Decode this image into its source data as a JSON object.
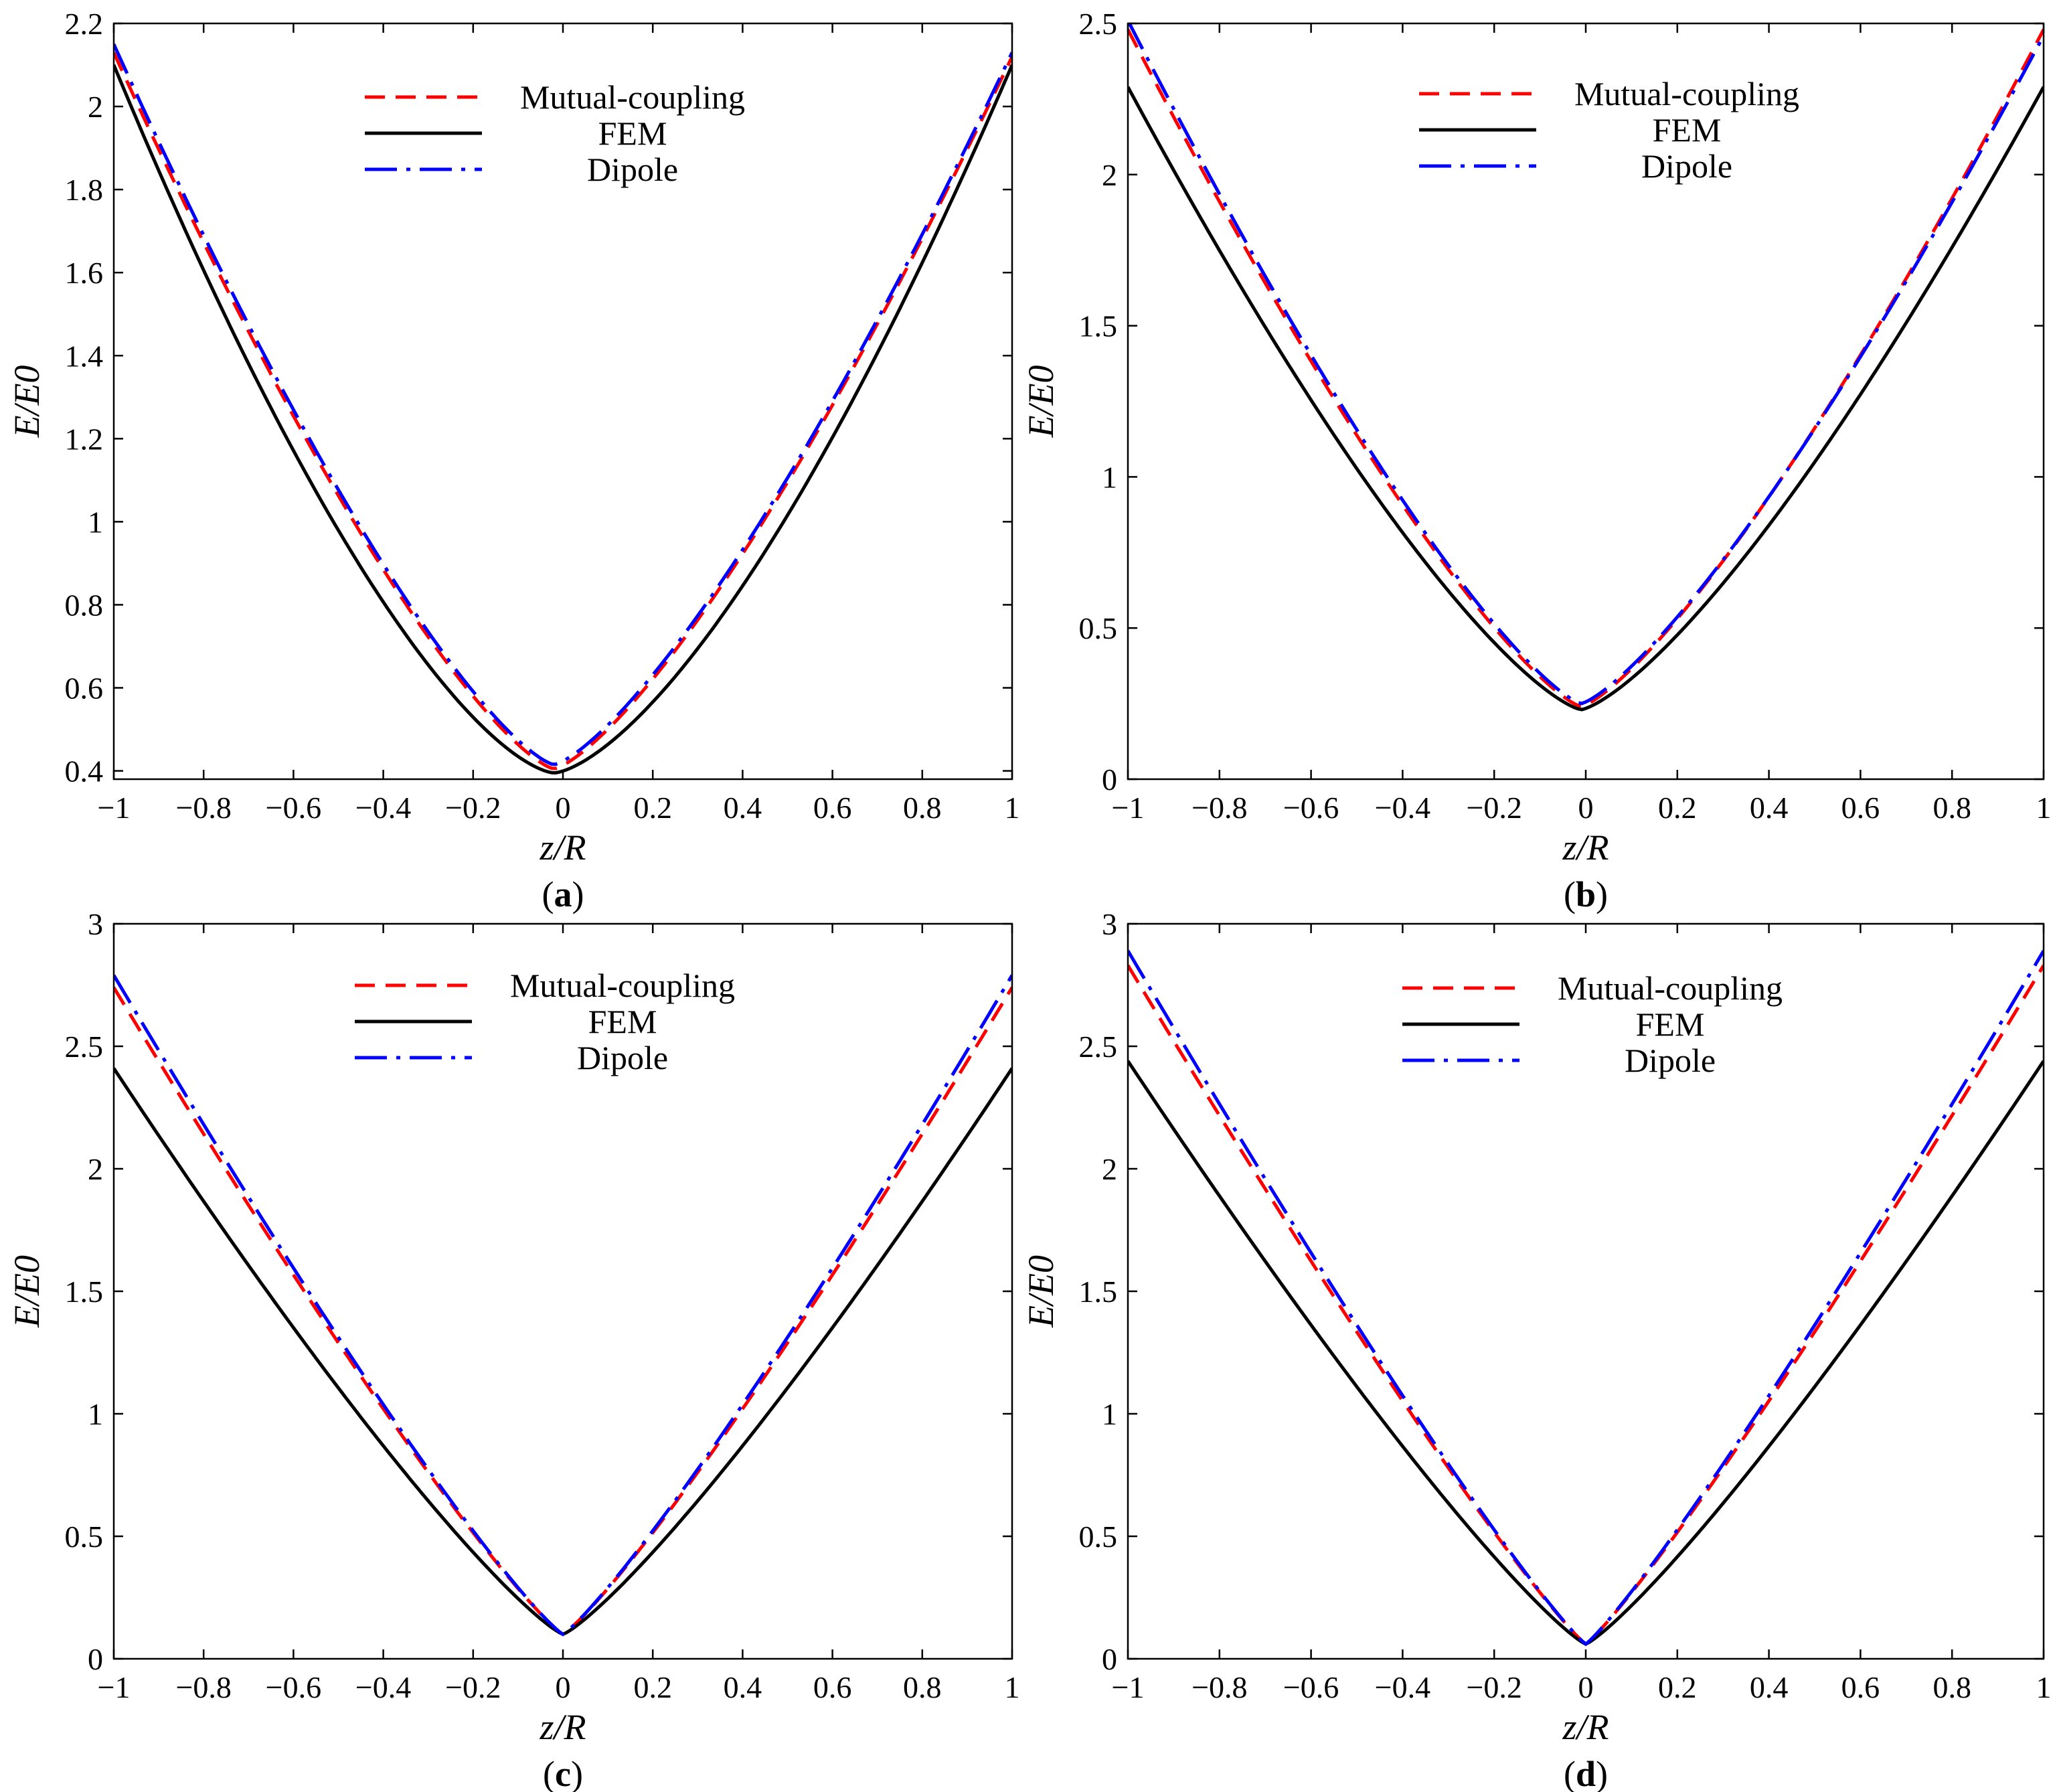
{
  "series_styles": {
    "mutual": {
      "color": "#ff0000",
      "dash": "30 16"
    },
    "fem": {
      "color": "#000000",
      "dash": ""
    },
    "dipole": {
      "color": "#0000ff",
      "dash": "48 14 6 14"
    }
  },
  "chart_data": [
    {
      "panel": "a",
      "type": "line",
      "label_open": "(",
      "label_letter": "a",
      "label_close": ")",
      "xlabel": "z/R",
      "ylabel": "E/E0",
      "xlim": [
        -1,
        1
      ],
      "ylim": [
        0.38,
        2.2
      ],
      "xticks": [
        -1,
        -0.8,
        -0.6,
        -0.4,
        -0.2,
        0,
        0.2,
        0.4,
        0.6,
        0.8,
        1
      ],
      "xtick_labels": [
        "−1",
        "−0.8",
        "−0.6",
        "−0.4",
        "−0.2",
        "0",
        "0.2",
        "0.4",
        "0.6",
        "0.8",
        "1"
      ],
      "yticks": [
        0.4,
        0.6,
        0.8,
        1,
        1.2,
        1.4,
        1.6,
        1.8,
        2,
        2.2
      ],
      "ytick_labels": [
        "0.4",
        "0.6",
        "0.8",
        "1",
        "1.2",
        "1.4",
        "1.6",
        "1.8",
        "2",
        "2.2"
      ],
      "legend": {
        "placement": "top-center",
        "entries": [
          "Mutual-coupling",
          "FEM",
          "Dipole"
        ]
      },
      "series": [
        {
          "name": "Mutual-coupling",
          "style": "mutual",
          "x_min": -0.02,
          "y_min": 0.405,
          "y_left": 2.13,
          "y_right": 2.12,
          "shape": 1.35
        },
        {
          "name": "FEM",
          "style": "fem",
          "x_min": -0.02,
          "y_min": 0.395,
          "y_left": 2.1,
          "y_right": 2.1,
          "shape": 1.5
        },
        {
          "name": "Dipole",
          "style": "dipole",
          "x_min": -0.02,
          "y_min": 0.415,
          "y_left": 2.15,
          "y_right": 2.13,
          "shape": 1.35
        }
      ]
    },
    {
      "panel": "b",
      "type": "line",
      "label_open": "(",
      "label_letter": "b",
      "label_close": ")",
      "xlabel": "z/R",
      "ylabel": "E/E0",
      "xlim": [
        -1,
        1
      ],
      "ylim": [
        0,
        2.5
      ],
      "xticks": [
        -1,
        -0.8,
        -0.6,
        -0.4,
        -0.2,
        0,
        0.2,
        0.4,
        0.6,
        0.8,
        1
      ],
      "xtick_labels": [
        "−1",
        "−0.8",
        "−0.6",
        "−0.4",
        "−0.2",
        "0",
        "0.2",
        "0.4",
        "0.6",
        "0.8",
        "1"
      ],
      "yticks": [
        0,
        0.5,
        1,
        1.5,
        2,
        2.5
      ],
      "ytick_labels": [
        "0",
        "0.5",
        "1",
        "1.5",
        "2",
        "2.5"
      ],
      "legend": {
        "placement": "top-center",
        "entries": [
          "Mutual-coupling",
          "FEM",
          "Dipole"
        ]
      },
      "series": [
        {
          "name": "Mutual-coupling",
          "style": "mutual",
          "x_min": -0.01,
          "y_min": 0.24,
          "y_left": 2.48,
          "y_right": 2.48,
          "shape": 1.3
        },
        {
          "name": "FEM",
          "style": "fem",
          "x_min": -0.01,
          "y_min": 0.23,
          "y_left": 2.29,
          "y_right": 2.29,
          "shape": 1.35
        },
        {
          "name": "Dipole",
          "style": "dipole",
          "x_min": -0.01,
          "y_min": 0.25,
          "y_left": 2.51,
          "y_right": 2.46,
          "shape": 1.3
        }
      ]
    },
    {
      "panel": "c",
      "type": "line",
      "label_open": "(",
      "label_letter": "c",
      "label_close": ")",
      "xlabel": "z/R",
      "ylabel": "E/E0",
      "xlim": [
        -1,
        1
      ],
      "ylim": [
        0,
        3
      ],
      "xticks": [
        -1,
        -0.8,
        -0.6,
        -0.4,
        -0.2,
        0,
        0.2,
        0.4,
        0.6,
        0.8,
        1
      ],
      "xtick_labels": [
        "−1",
        "−0.8",
        "−0.6",
        "−0.4",
        "−0.2",
        "0",
        "0.2",
        "0.4",
        "0.6",
        "0.8",
        "1"
      ],
      "yticks": [
        0,
        0.5,
        1,
        1.5,
        2,
        2.5,
        3
      ],
      "ytick_labels": [
        "0",
        "0.5",
        "1",
        "1.5",
        "2",
        "2.5",
        "3"
      ],
      "legend": {
        "placement": "top-center",
        "entries": [
          "Mutual-coupling",
          "FEM",
          "Dipole"
        ]
      },
      "series": [
        {
          "name": "Mutual-coupling",
          "style": "mutual",
          "x_min": 0.0,
          "y_min": 0.1,
          "y_left": 2.74,
          "y_right": 2.74,
          "shape": 1.15
        },
        {
          "name": "FEM",
          "style": "fem",
          "x_min": 0.0,
          "y_min": 0.1,
          "y_left": 2.41,
          "y_right": 2.41,
          "shape": 1.2
        },
        {
          "name": "Dipole",
          "style": "dipole",
          "x_min": 0.0,
          "y_min": 0.1,
          "y_left": 2.79,
          "y_right": 2.79,
          "shape": 1.15
        }
      ]
    },
    {
      "panel": "d",
      "type": "line",
      "label_open": "(",
      "label_letter": "d",
      "label_close": ")",
      "xlabel": "z/R",
      "ylabel": "E/E0",
      "xlim": [
        -1,
        1
      ],
      "ylim": [
        0,
        3
      ],
      "xticks": [
        -1,
        -0.8,
        -0.6,
        -0.4,
        -0.2,
        0,
        0.2,
        0.4,
        0.6,
        0.8,
        1
      ],
      "xtick_labels": [
        "−1",
        "−0.8",
        "−0.6",
        "−0.4",
        "−0.2",
        "0",
        "0.2",
        "0.4",
        "0.6",
        "0.8",
        "1"
      ],
      "yticks": [
        0,
        0.5,
        1,
        1.5,
        2,
        2.5,
        3
      ],
      "ytick_labels": [
        "0",
        "0.5",
        "1",
        "1.5",
        "2",
        "2.5",
        "3"
      ],
      "legend": {
        "placement": "top-center",
        "entries": [
          "Mutual-coupling",
          "FEM",
          "Dipole"
        ]
      },
      "series": [
        {
          "name": "Mutual-coupling",
          "style": "mutual",
          "x_min": 0.0,
          "y_min": 0.06,
          "y_left": 2.83,
          "y_right": 2.83,
          "shape": 1.12
        },
        {
          "name": "FEM",
          "style": "fem",
          "x_min": 0.0,
          "y_min": 0.06,
          "y_left": 2.44,
          "y_right": 2.44,
          "shape": 1.18
        },
        {
          "name": "Dipole",
          "style": "dipole",
          "x_min": 0.0,
          "y_min": 0.06,
          "y_left": 2.89,
          "y_right": 2.89,
          "shape": 1.12
        }
      ]
    }
  ]
}
